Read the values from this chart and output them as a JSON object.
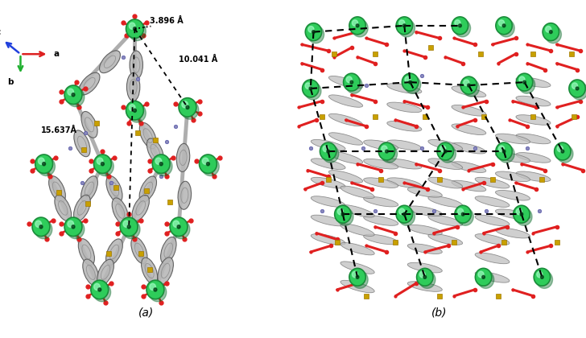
{
  "figure_width": 7.28,
  "figure_height": 4.2,
  "dpi": 100,
  "background_color": "#ffffff",
  "label_a": "(a)",
  "label_b": "(b)",
  "label_fontsize": 10,
  "annotation_3896_text": "3.896 Å",
  "annotation_10041_text": "10.041 Å",
  "annotation_15637_text": "15.637Å",
  "gray_ligand_color": "#a0a0a0",
  "green_node_color": "#2ecc5a",
  "green_node_edge": "#1a8c3a",
  "red_carboxylate": "#e02020",
  "yellow_sulfur": "#c8a000",
  "blue_nitrogen": "#8888bb",
  "dashed_line_color": "#111111",
  "arrow_red": "#dd2020",
  "arrow_green": "#20b030",
  "arrow_blue": "#2040dd"
}
